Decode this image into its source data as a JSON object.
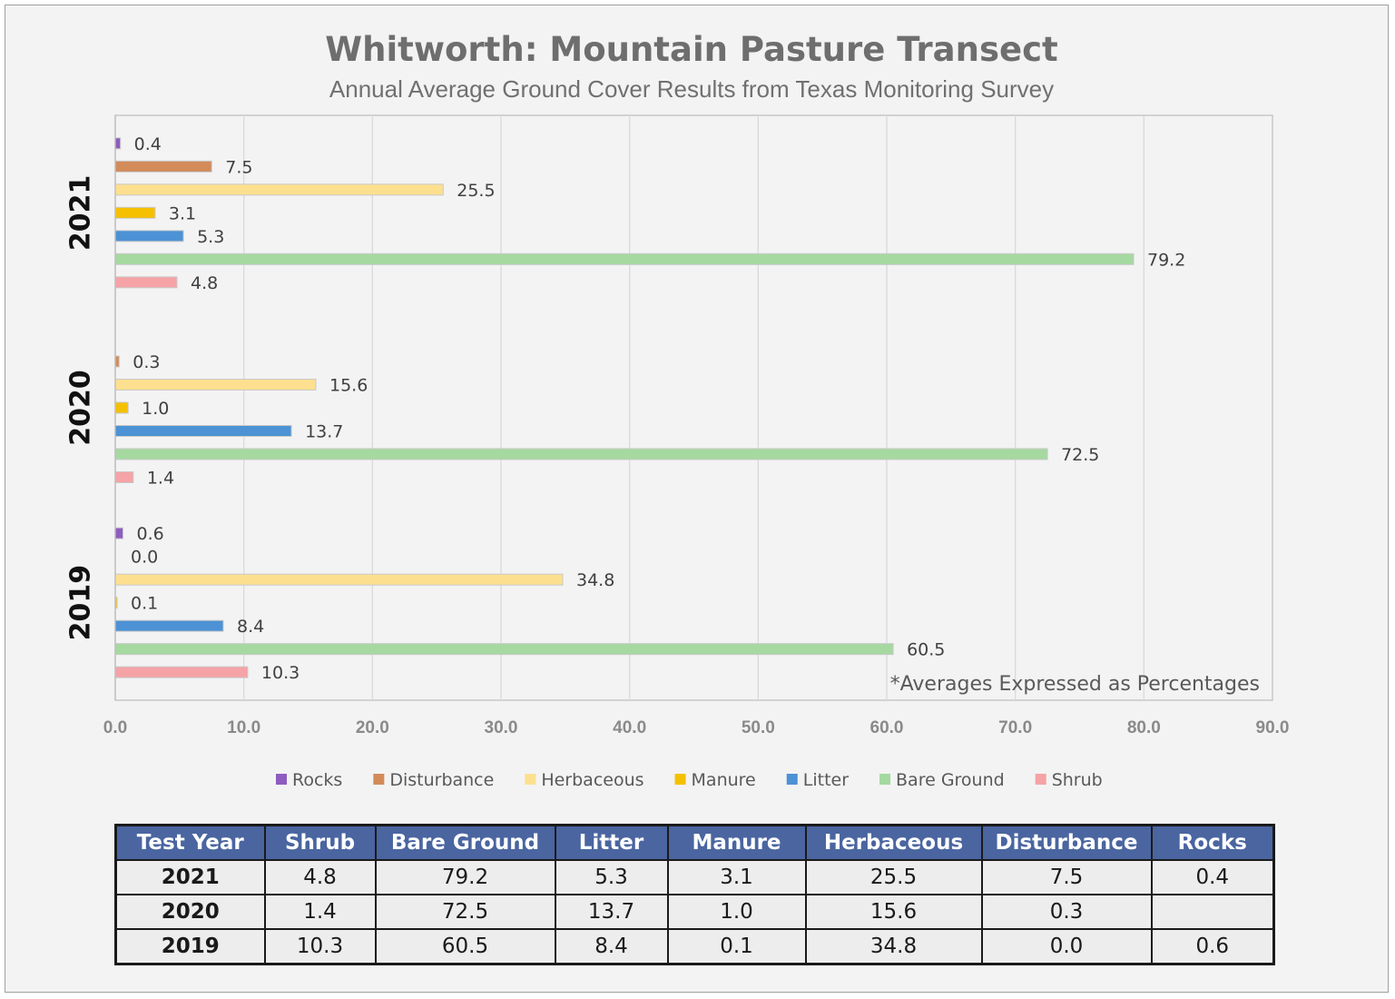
{
  "colors": {
    "Rocks": "#8e5cc0",
    "Disturbance": "#d38b5a",
    "Herbaceous": "#fde08f",
    "Manure": "#f5c000",
    "Litter": "#4c92d4",
    "Bare Ground": "#a5d9a0",
    "Shrub": "#f5a3a6"
  },
  "chart_data": {
    "type": "bar",
    "orientation": "horizontal",
    "title": "Whitworth: Mountain Pasture Transect",
    "subtitle": "Annual Average Ground Cover Results from Texas Monitoring Survey",
    "categories": [
      "2021",
      "2020",
      "2019"
    ],
    "series": [
      {
        "name": "Rocks",
        "values": [
          0.4,
          null,
          0.6
        ],
        "labels": [
          "0.4",
          "",
          "0.6"
        ]
      },
      {
        "name": "Disturbance",
        "values": [
          7.5,
          0.3,
          0.0
        ],
        "labels": [
          "7.5",
          "0.3",
          "0.0"
        ]
      },
      {
        "name": "Herbaceous",
        "values": [
          25.5,
          15.6,
          34.8
        ],
        "labels": [
          "25.5",
          "15.6",
          "34.8"
        ]
      },
      {
        "name": "Manure",
        "values": [
          3.1,
          1.0,
          0.1
        ],
        "labels": [
          "3.1",
          "1.0",
          "0.1"
        ]
      },
      {
        "name": "Litter",
        "values": [
          5.3,
          13.7,
          8.4
        ],
        "labels": [
          "5.3",
          "13.7",
          "8.4"
        ]
      },
      {
        "name": "Bare Ground",
        "values": [
          79.2,
          72.5,
          60.5
        ],
        "labels": [
          "79.2",
          "72.5",
          "60.5"
        ]
      },
      {
        "name": "Shrub",
        "values": [
          4.8,
          1.4,
          10.3
        ],
        "labels": [
          "4.8",
          "1.4",
          "10.3"
        ]
      }
    ],
    "xlim": [
      0,
      90
    ],
    "xticks": [
      "0.0",
      "10.0",
      "20.0",
      "30.0",
      "40.0",
      "50.0",
      "60.0",
      "70.0",
      "80.0",
      "90.0"
    ],
    "grid": "vertical",
    "legend": "bottom",
    "annotation": "*Averages Expressed as Percentages"
  },
  "table": {
    "headers": [
      "Test Year",
      "Shrub",
      "Bare Ground",
      "Litter",
      "Manure",
      "Herbaceous",
      "Disturbance",
      "Rocks"
    ],
    "rows": [
      [
        "2021",
        "4.8",
        "79.2",
        "5.3",
        "3.1",
        "25.5",
        "7.5",
        "0.4"
      ],
      [
        "2020",
        "1.4",
        "72.5",
        "13.7",
        "1.0",
        "15.6",
        "0.3",
        ""
      ],
      [
        "2019",
        "10.3",
        "60.5",
        "8.4",
        "0.1",
        "34.8",
        "0.0",
        "0.6"
      ]
    ]
  }
}
